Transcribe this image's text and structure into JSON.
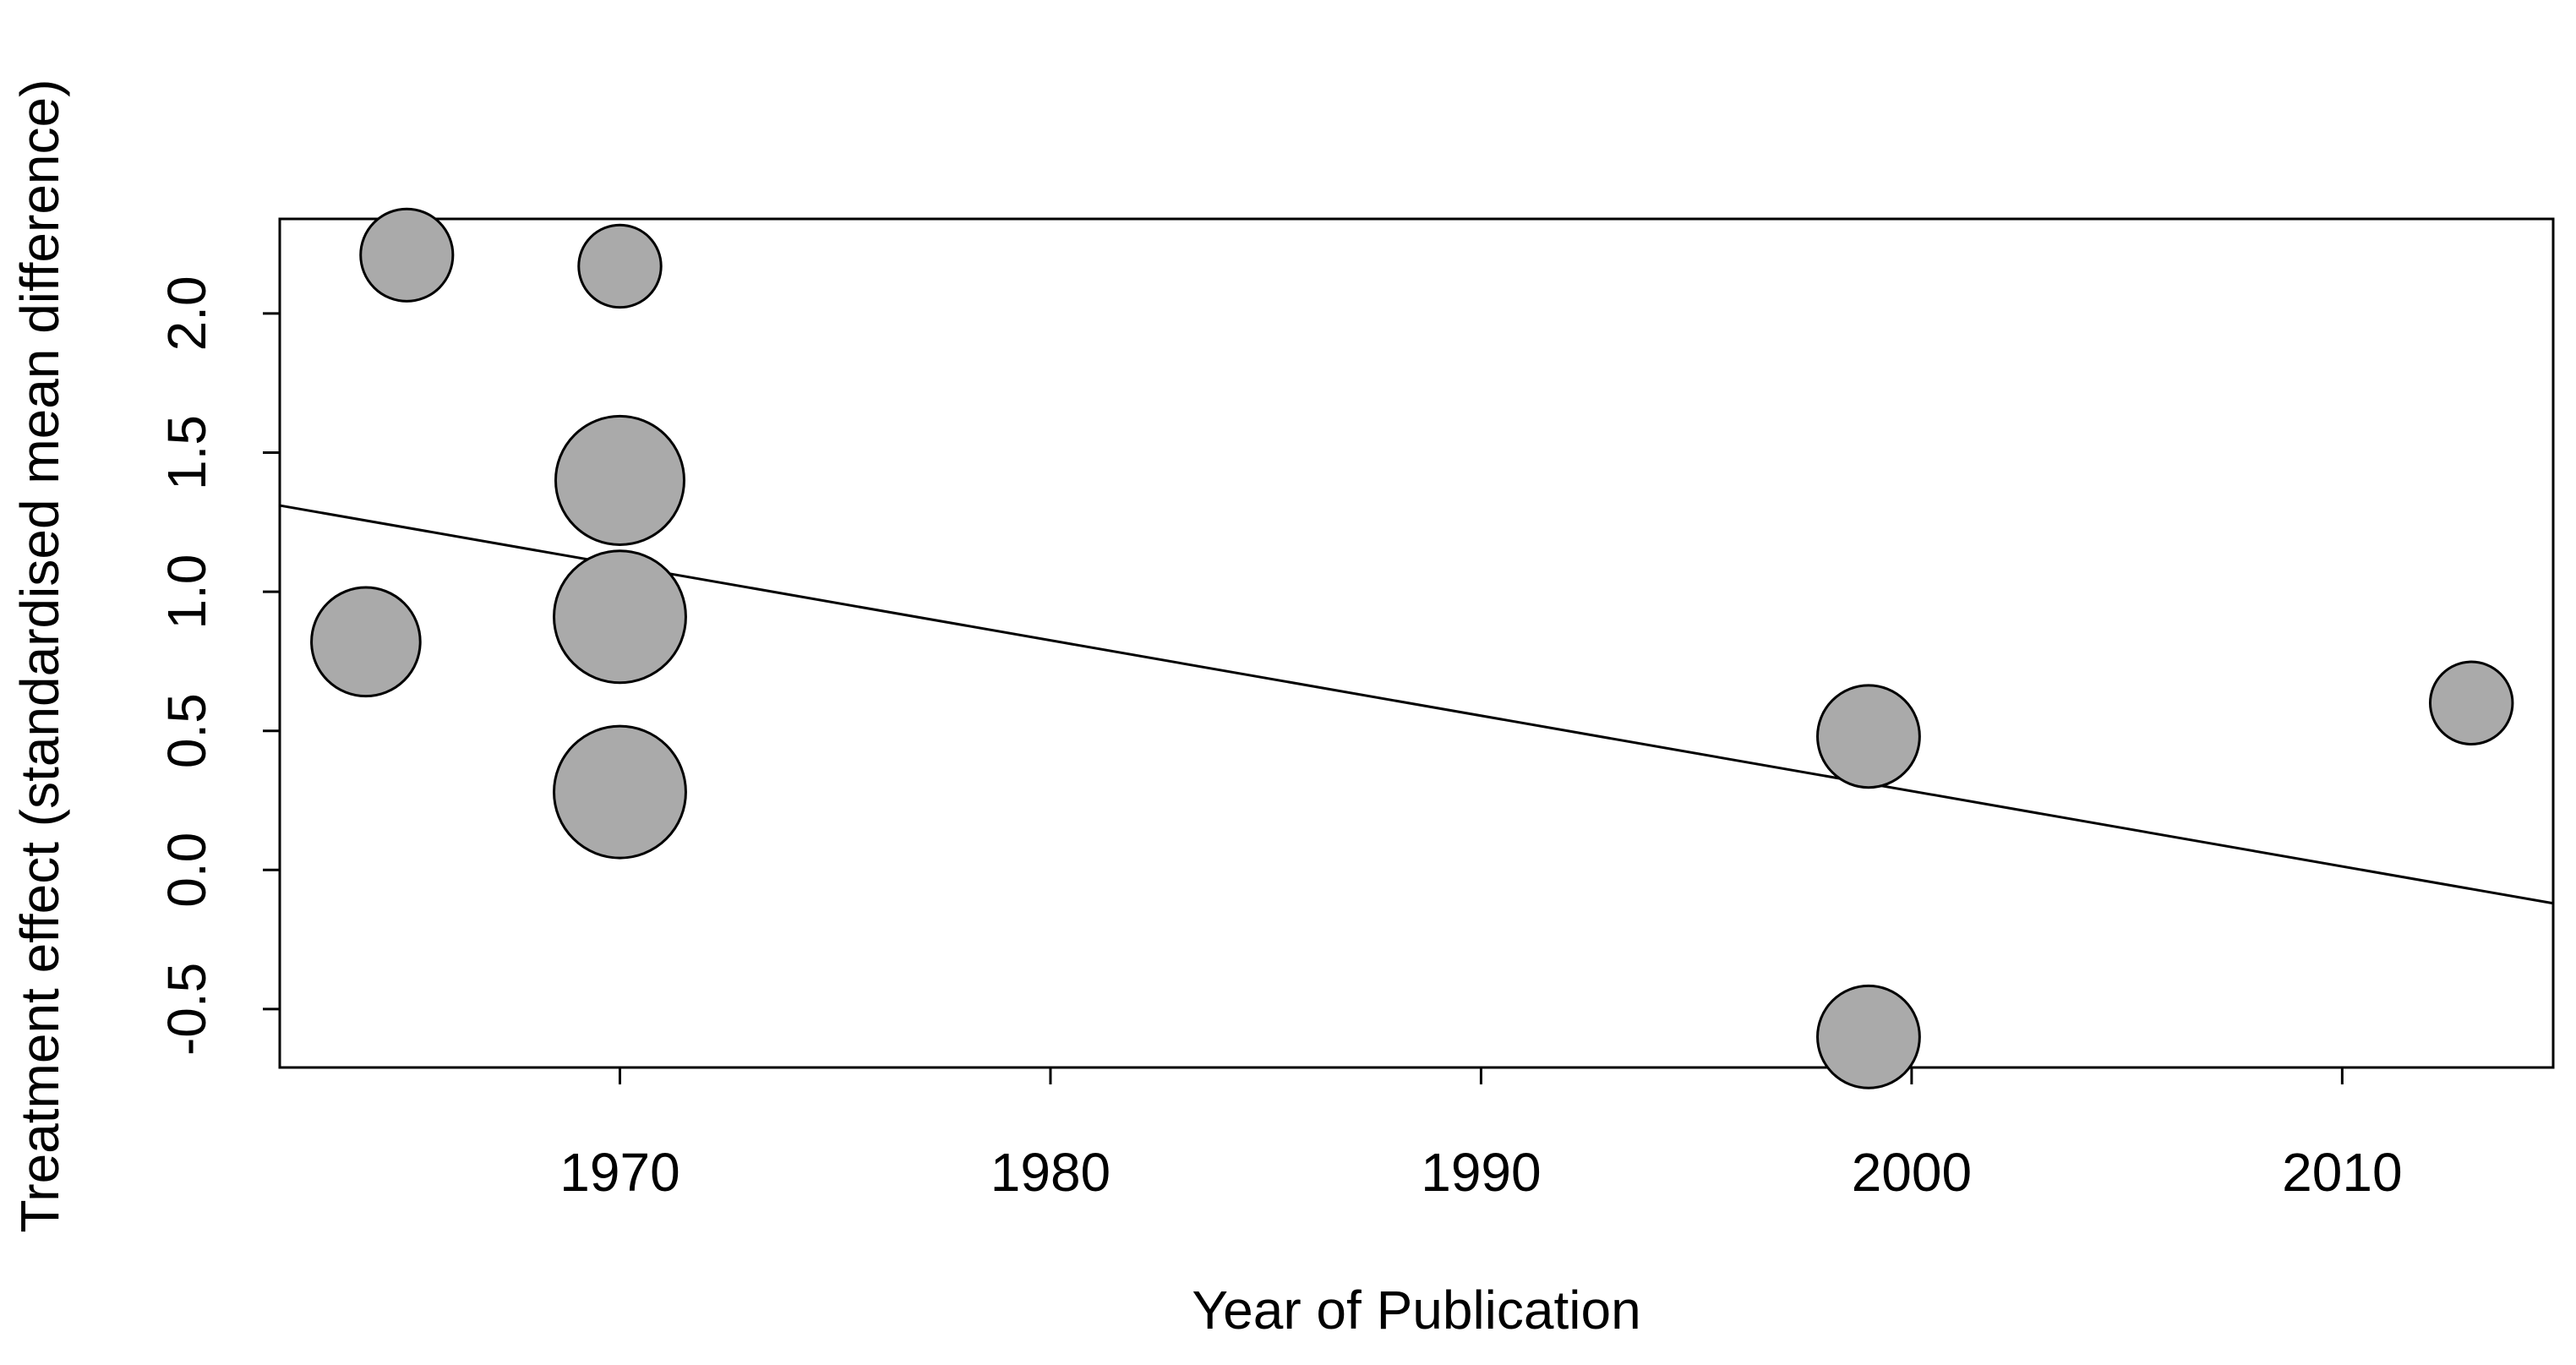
{
  "chart_data": {
    "type": "scatter",
    "x_label": "Year of Publication",
    "y_label": "Treatment effect (standardised mean difference)",
    "x": [
      1964.1,
      1965.05,
      1970,
      1970,
      1970,
      1970,
      1999,
      1999,
      2013
    ],
    "series": [
      {
        "color": "#aaaaaa",
        "values": [
          0.82,
          2.21,
          2.17,
          1.4,
          0.91,
          0.28,
          0.48,
          -0.6,
          0.6
        ],
        "sizes": [
          33,
          28,
          25,
          39,
          40,
          40,
          31,
          31,
          25
        ]
      }
    ],
    "trend_line": {
      "x": [
        1962.1,
        2014.9
      ],
      "y": [
        1.31,
        -0.12
      ]
    },
    "xlim": [
      1962.1,
      2014.9
    ],
    "ylim": [
      -0.71,
      2.34
    ],
    "xticks": [
      1970,
      1980,
      1990,
      2000,
      2010
    ],
    "yticks": [
      -0.5,
      {
        "value": 0,
        "label": "0.0"
      },
      0.5,
      {
        "value": 1,
        "label": "1.0"
      },
      1.5,
      {
        "value": 2,
        "label": "2.0"
      }
    ]
  }
}
